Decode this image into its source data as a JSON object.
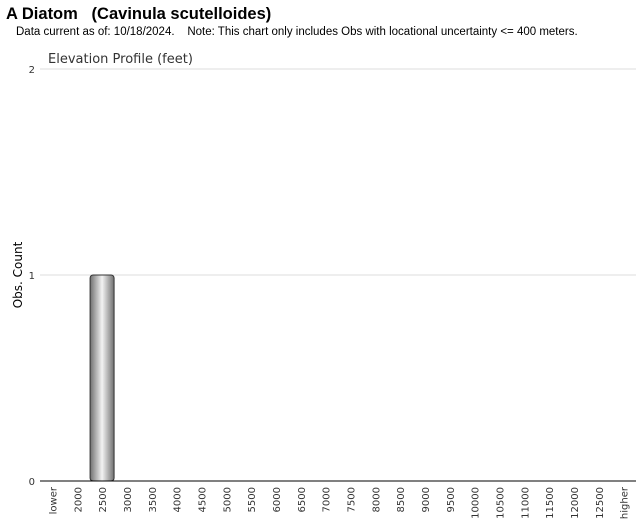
{
  "header": {
    "title": "A Diatom   (Cavinula scutelloides)",
    "note": "Data current as of: 10/18/2024.    Note: This chart only includes Obs with locational uncertainty <= 400 meters."
  },
  "chart_data": {
    "type": "bar",
    "title": "Elevation Profile (feet)",
    "xlabel": "",
    "ylabel": "Obs. Count",
    "categories": [
      "lower",
      "2000",
      "2500",
      "3000",
      "3500",
      "4000",
      "4500",
      "5000",
      "5500",
      "6000",
      "6500",
      "7000",
      "7500",
      "8000",
      "8500",
      "9000",
      "9500",
      "10000",
      "10500",
      "11000",
      "11500",
      "12000",
      "12500",
      "higher"
    ],
    "values": [
      0,
      0,
      1,
      0,
      0,
      0,
      0,
      0,
      0,
      0,
      0,
      0,
      0,
      0,
      0,
      0,
      0,
      0,
      0,
      0,
      0,
      0,
      0,
      0
    ],
    "ylim": [
      0,
      2
    ],
    "yticks": [
      0,
      1,
      2
    ],
    "grid": true,
    "colors": {
      "bar_dark": "#707070",
      "bar_light": "#f2f2f2",
      "bar_stroke": "#333333",
      "grid": "#dddddd",
      "axis": "#000000"
    }
  }
}
